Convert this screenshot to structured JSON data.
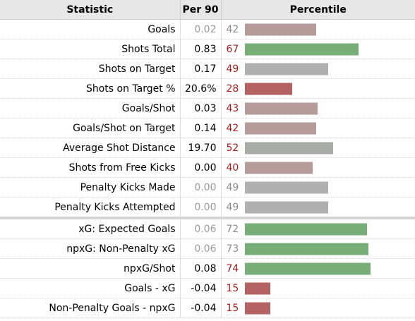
{
  "header": {
    "statistic": "Statistic",
    "per90": "Per 90",
    "percentile": "Percentile"
  },
  "colors": {
    "high": "#77ae77",
    "neutral": "#b0b0b0",
    "low_mid": "#b69b9b",
    "low": "#b56262"
  },
  "rows": [
    {
      "stat": "Goals",
      "per90": "0.02",
      "percentile": 42,
      "bar_color": "#b69b9b",
      "per_dim": true,
      "pct_red": false
    },
    {
      "stat": "Shots Total",
      "per90": "0.83",
      "percentile": 67,
      "bar_color": "#77ae77",
      "per_dim": false,
      "pct_red": true
    },
    {
      "stat": "Shots on Target",
      "per90": "0.17",
      "percentile": 49,
      "bar_color": "#b0b0b0",
      "per_dim": false,
      "pct_red": true
    },
    {
      "stat": "Shots on Target %",
      "per90": "20.6%",
      "percentile": 28,
      "bar_color": "#b56262",
      "per_dim": false,
      "pct_red": true
    },
    {
      "stat": "Goals/Shot",
      "per90": "0.03",
      "percentile": 43,
      "bar_color": "#b69b9b",
      "per_dim": false,
      "pct_red": true
    },
    {
      "stat": "Goals/Shot on Target",
      "per90": "0.14",
      "percentile": 42,
      "bar_color": "#b69b9b",
      "per_dim": false,
      "pct_red": true
    },
    {
      "stat": "Average Shot Distance",
      "per90": "19.70",
      "percentile": 52,
      "bar_color": "#a8aca8",
      "per_dim": false,
      "pct_red": true
    },
    {
      "stat": "Shots from Free Kicks",
      "per90": "0.00",
      "percentile": 40,
      "bar_color": "#b69b9b",
      "per_dim": false,
      "pct_red": true
    },
    {
      "stat": "Penalty Kicks Made",
      "per90": "0.00",
      "percentile": 49,
      "bar_color": "#b0b0b0",
      "per_dim": true,
      "pct_red": false
    },
    {
      "stat": "Penalty Kicks Attempted",
      "per90": "0.00",
      "percentile": 49,
      "bar_color": "#b0b0b0",
      "per_dim": true,
      "pct_red": false
    },
    {
      "stat": "xG: Expected Goals",
      "per90": "0.06",
      "percentile": 72,
      "bar_color": "#77ae77",
      "per_dim": true,
      "pct_red": false,
      "section_start": true
    },
    {
      "stat": "npxG: Non-Penalty xG",
      "per90": "0.06",
      "percentile": 73,
      "bar_color": "#77ae77",
      "per_dim": true,
      "pct_red": false
    },
    {
      "stat": "npxG/Shot",
      "per90": "0.08",
      "percentile": 74,
      "bar_color": "#77ae77",
      "per_dim": false,
      "pct_red": true
    },
    {
      "stat": "Goals - xG",
      "per90": "-0.04",
      "percentile": 15,
      "bar_color": "#b56262",
      "per_dim": false,
      "pct_red": true
    },
    {
      "stat": "Non-Penalty Goals - npxG",
      "per90": "-0.04",
      "percentile": 15,
      "bar_color": "#b56262",
      "per_dim": false,
      "pct_red": true
    }
  ]
}
